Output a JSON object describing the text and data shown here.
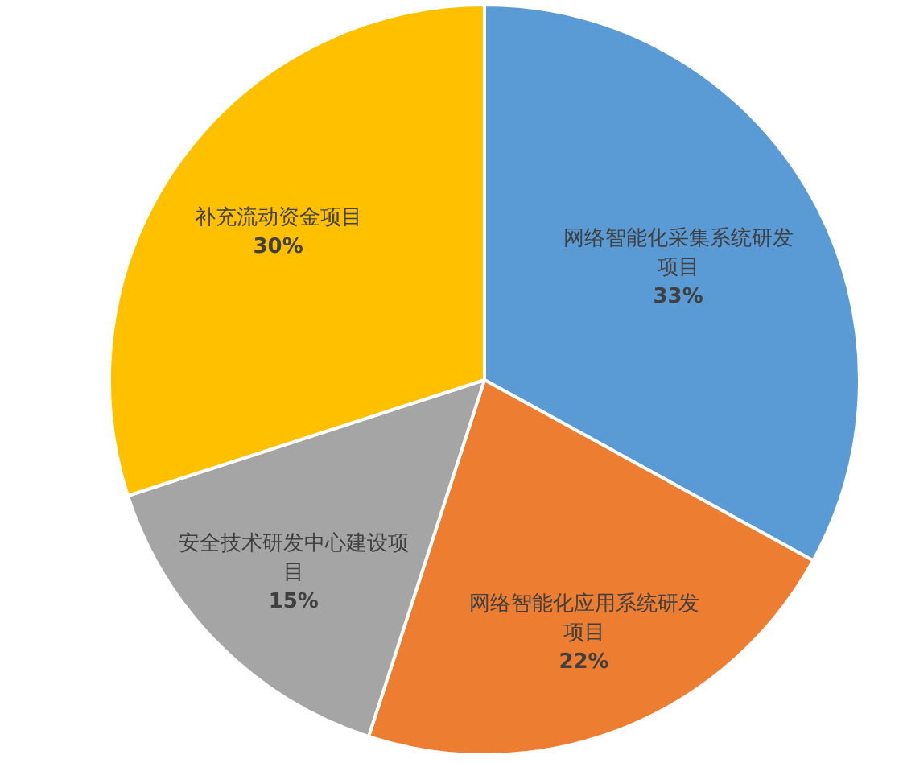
{
  "chart_data": {
    "type": "pie",
    "categories": [
      "网络智能化采集系统研发项目",
      "网络智能化应用系统研发项目",
      "安全技术研发中心建设项目",
      "补充流动资金项目"
    ],
    "values": [
      33,
      22,
      15,
      30
    ],
    "value_labels": [
      "33%",
      "22%",
      "15%",
      "30%"
    ],
    "colors": [
      "#5b9bd5",
      "#ed7d31",
      "#a5a5a5",
      "#ffc000"
    ]
  }
}
